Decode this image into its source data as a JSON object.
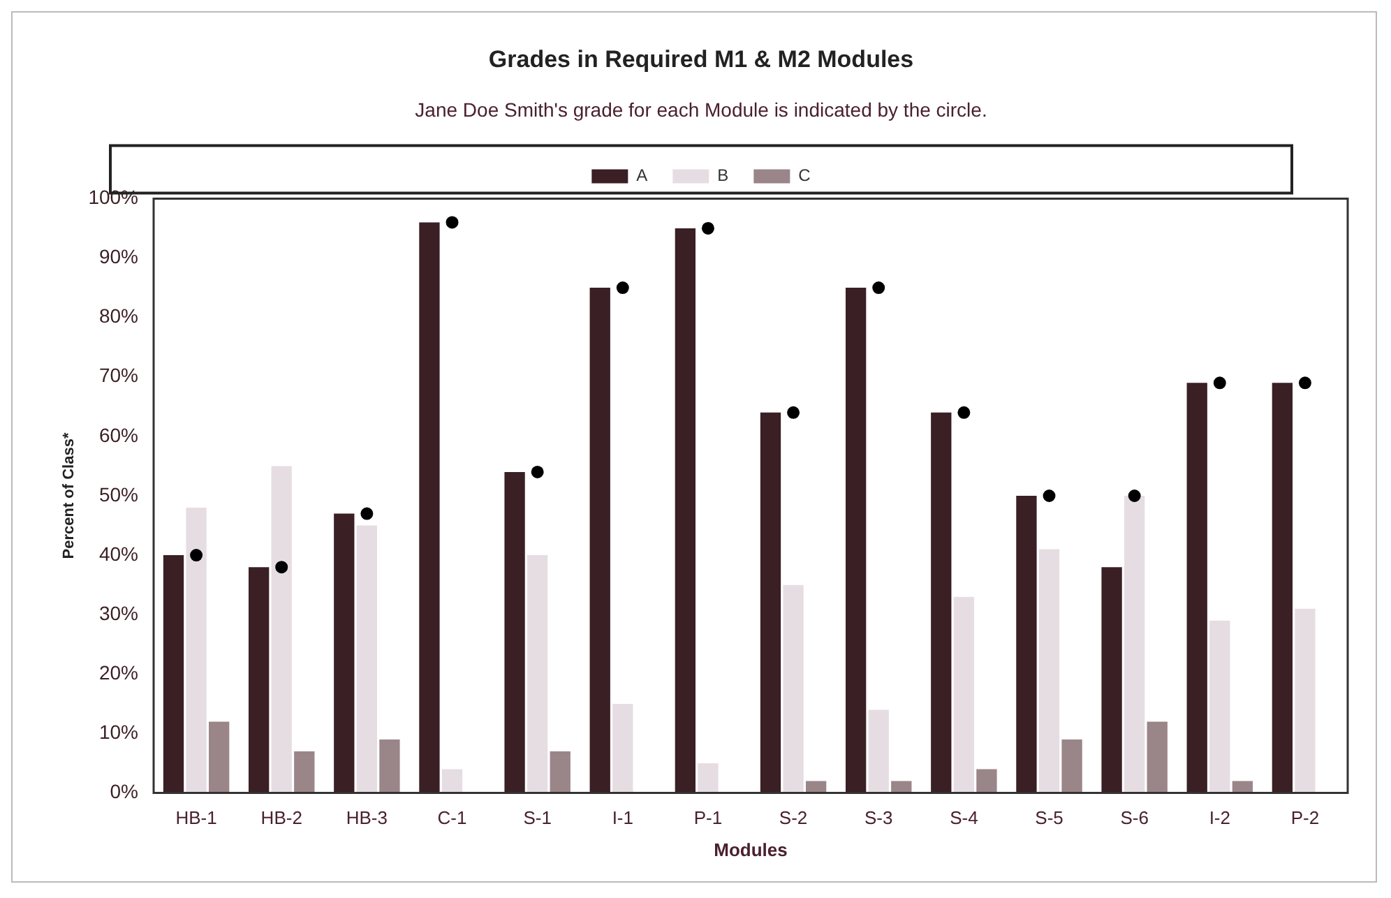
{
  "chart_data": {
    "type": "bar",
    "title": "Grades in Required M1 & M2 Modules",
    "subtitle": "Jane Doe Smith's grade for each Module is indicated by the circle.",
    "xlabel": "Modules",
    "ylabel": "Percent of Class*",
    "categories": [
      "HB-1",
      "HB-2",
      "HB-3",
      "C-1",
      "S-1",
      "I-1",
      "P-1",
      "S-2",
      "S-3",
      "S-4",
      "S-5",
      "S-6",
      "I-2",
      "P-2"
    ],
    "series": [
      {
        "name": "A",
        "color": "#3a1f24",
        "values": [
          40,
          38,
          47,
          96,
          54,
          85,
          95,
          64,
          85,
          64,
          50,
          38,
          69,
          69
        ]
      },
      {
        "name": "B",
        "color": "#e6dde2",
        "values": [
          48,
          55,
          45,
          4,
          40,
          15,
          5,
          35,
          14,
          33,
          41,
          50,
          29,
          31
        ]
      },
      {
        "name": "C",
        "color": "#9a8589",
        "values": [
          12,
          7,
          9,
          0,
          7,
          0,
          0,
          2,
          2,
          4,
          9,
          12,
          2,
          0
        ]
      },
      {
        "type": "scatter",
        "color": "#000000",
        "marker": "circle",
        "x": [
          "HB-1",
          "HB-2",
          "HB-3",
          "C-1",
          "S-1",
          "I-1",
          "P-1",
          "S-2",
          "S-3",
          "S-4",
          "S-5",
          "S-6",
          "I-2",
          "P-2"
        ],
        "values": [
          40,
          38,
          47,
          96,
          54,
          85,
          95,
          64,
          85,
          64,
          50,
          50,
          69,
          69
        ]
      }
    ],
    "ylim": [
      0,
      100
    ],
    "yticks": [
      {
        "value": 0,
        "label": "0%"
      },
      {
        "value": 10,
        "label": "10%"
      },
      {
        "value": 20,
        "label": "20%"
      },
      {
        "value": 30,
        "label": "30%"
      },
      {
        "value": 40,
        "label": "40%"
      },
      {
        "value": 50,
        "label": "50%"
      },
      {
        "value": 60,
        "label": "60%"
      },
      {
        "value": 70,
        "label": "70%"
      },
      {
        "value": 80,
        "label": "80%"
      },
      {
        "value": 90,
        "label": "90%"
      },
      {
        "value": 100,
        "label": "100%"
      }
    ],
    "grid": false,
    "legend": "top"
  }
}
